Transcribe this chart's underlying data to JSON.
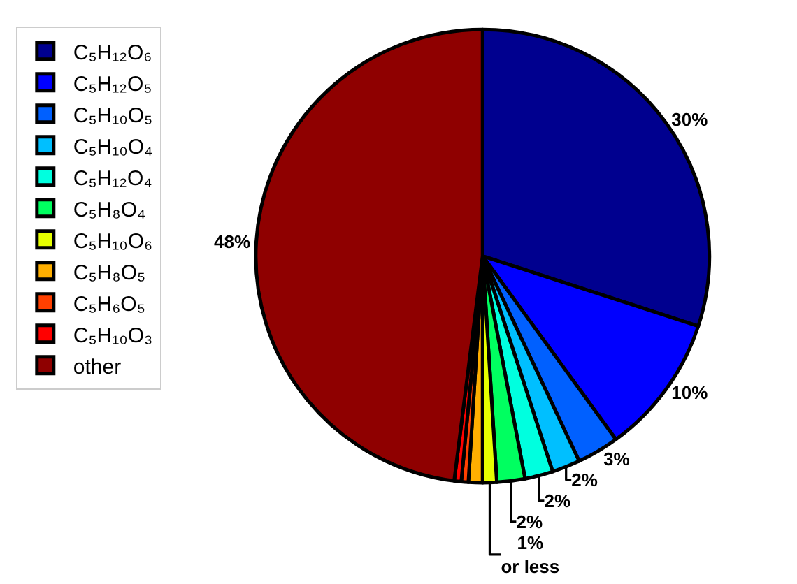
{
  "chart_data": {
    "type": "pie",
    "categories": [
      "C₅H₁₂O₆",
      "C₅H₁₂O₅",
      "C₅H₁₀O₅",
      "C₅H₁₀O₄",
      "C₅H₁₂O₄",
      "C₅H₈O₄",
      "C₅H₁₀O₆",
      "C₅H₈O₅",
      "C₅H₆O₅",
      "C₅H₁₀O₃",
      "other"
    ],
    "values": [
      30,
      10,
      3,
      2,
      2,
      2,
      1,
      1,
      0.5,
      0.5,
      48
    ],
    "colors": [
      "#00008f",
      "#0000ff",
      "#0060ff",
      "#00bfff",
      "#00ffdf",
      "#00ff60",
      "#e6ff00",
      "#ffaf00",
      "#ff4000",
      "#ff0000",
      "#8f0000"
    ],
    "value_labels": [
      "30%",
      "10%",
      "3%",
      "2%",
      "2%",
      "2%",
      "1%\nor less",
      null,
      null,
      null,
      "48%"
    ],
    "legend": "left"
  }
}
